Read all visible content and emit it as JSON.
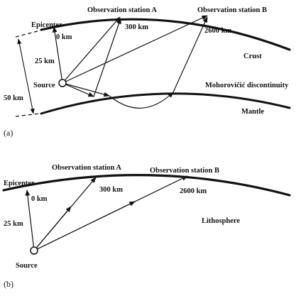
{
  "diagram_a": {
    "panel_label": "(a)",
    "epicenter": "Epicenter",
    "station_a": "Observation station A",
    "station_b": "Observation station B",
    "dist_0": "0 km",
    "dist_300": "300 km",
    "dist_2600": "2600 km",
    "depth_25": "25 km",
    "depth_50": "50 km",
    "source": "Source",
    "crust": "Crust",
    "moho": "Mohorovičić discontinuity",
    "mantle": "Mantle"
  },
  "diagram_b": {
    "panel_label": "(b)",
    "epicenter": "Epicenter",
    "station_a": "Observation station A",
    "station_b": "Observation station B",
    "dist_0": "0 km",
    "dist_300": "300 km",
    "dist_2600": "2600 km",
    "depth_25": "25 km",
    "source": "Source",
    "lithosphere": "Lithosphere"
  }
}
